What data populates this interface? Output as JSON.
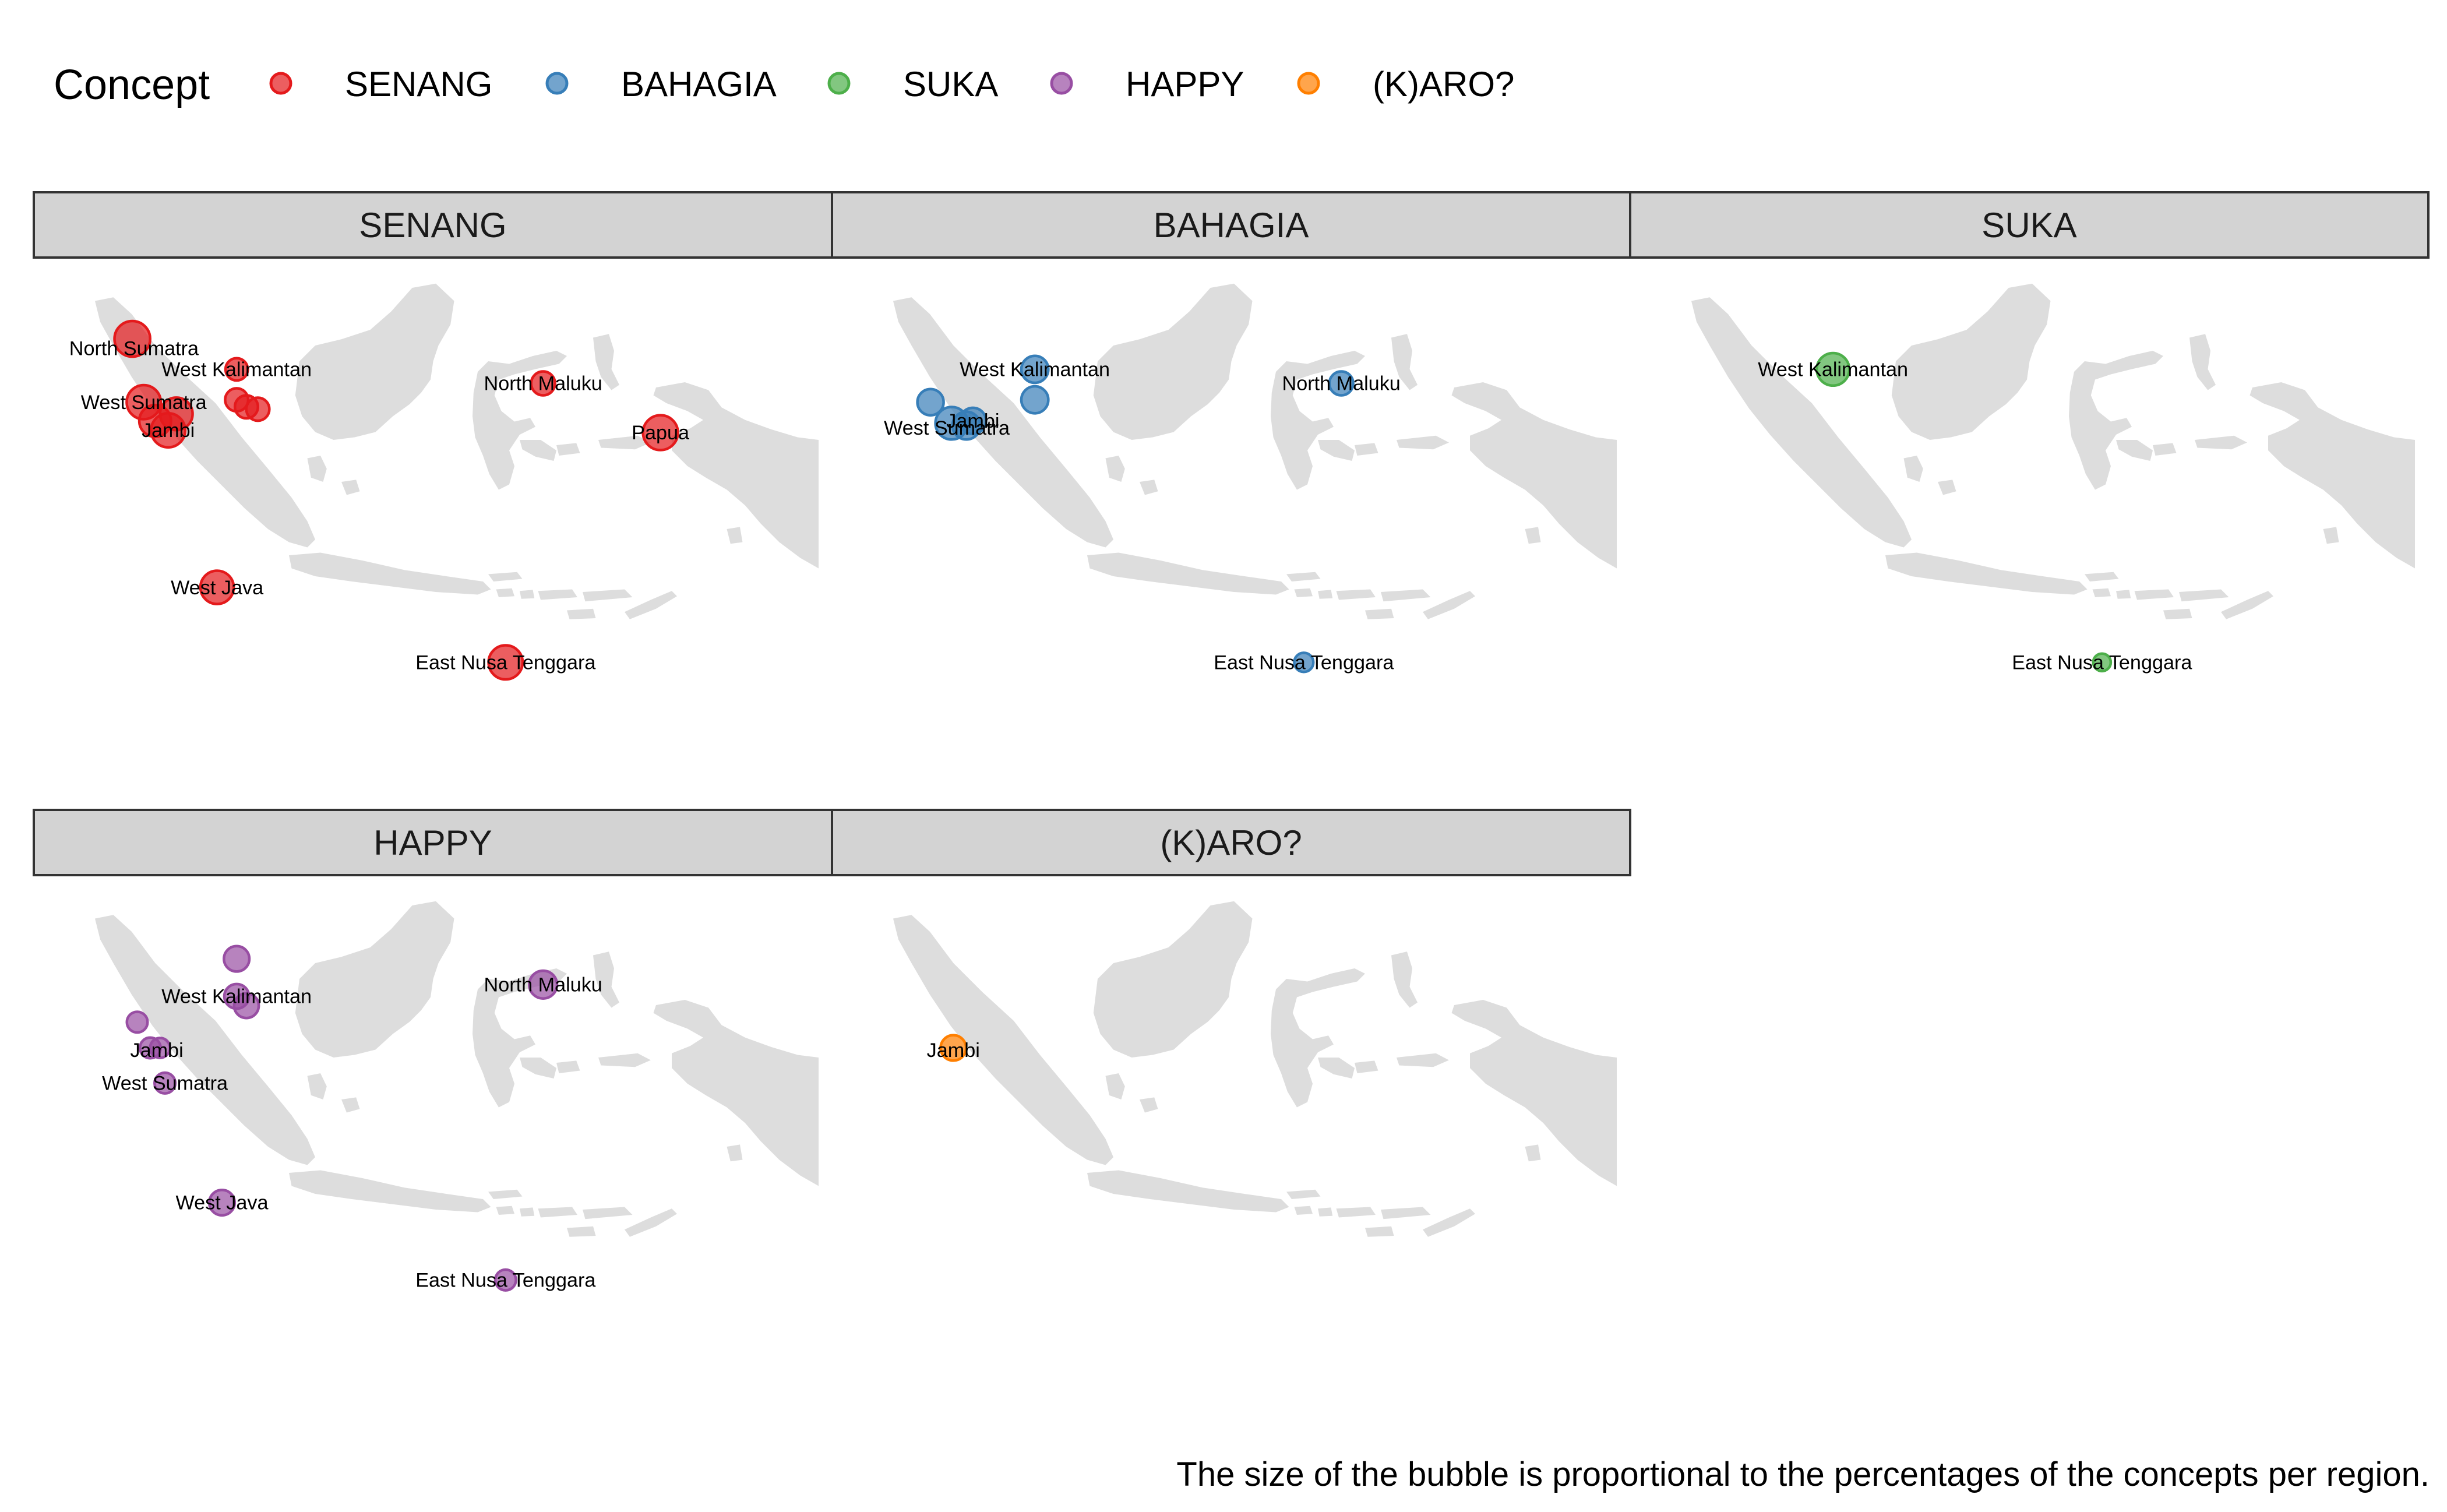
{
  "legend": {
    "title": "Concept",
    "items": [
      {
        "label": "SENANG",
        "color": "#E41A1C"
      },
      {
        "label": "BAHAGIA",
        "color": "#377EB8"
      },
      {
        "label": "SUKA",
        "color": "#4DAF4A"
      },
      {
        "label": "HAPPY",
        "color": "#984EA3"
      },
      {
        "label": "(K)ARO?",
        "color": "#FF7F00"
      }
    ]
  },
  "caption": "The size of the bubble is proportional to the percentages of the concepts per region.",
  "map_fill": "#DDDDDD",
  "strip_fill": "#D3D3D3",
  "chart_data": {
    "type": "bubble-map",
    "facets": [
      {
        "concept": "SENANG",
        "color": "#E41A1C",
        "bubbles": [
          {
            "lon": 98.9,
            "lat": 3.6,
            "size": 3.2
          },
          {
            "lon": 99.6,
            "lat": 0.9,
            "size": 3.0
          },
          {
            "lon": 100.3,
            "lat": 0.1,
            "size": 2.7
          },
          {
            "lon": 101.1,
            "lat": -0.3,
            "size": 3.0
          },
          {
            "lon": 101.6,
            "lat": 0.4,
            "size": 2.8
          },
          {
            "lon": 104.1,
            "lat": -7.0,
            "size": 2.9
          },
          {
            "lon": 105.3,
            "lat": 2.3,
            "size": 1.5
          },
          {
            "lon": 105.3,
            "lat": 1.0,
            "size": 1.6
          },
          {
            "lon": 105.9,
            "lat": 0.7,
            "size": 1.6
          },
          {
            "lon": 106.6,
            "lat": 0.6,
            "size": 1.6
          },
          {
            "lon": 121.8,
            "lat": -10.2,
            "size": 3.0
          },
          {
            "lon": 124.1,
            "lat": 1.7,
            "size": 1.7
          },
          {
            "lon": 131.3,
            "lat": -0.4,
            "size": 3.1
          }
        ],
        "labels": [
          {
            "text": "North Sumatra",
            "lon": 99.0,
            "lat": 3.2
          },
          {
            "text": "West Kalimantan",
            "lon": 105.3,
            "lat": 2.3
          },
          {
            "text": "North Maluku",
            "lon": 124.1,
            "lat": 1.7
          },
          {
            "text": "West Sumatra",
            "lon": 99.6,
            "lat": 0.9
          },
          {
            "text": "Jambi",
            "lon": 101.1,
            "lat": -0.3
          },
          {
            "text": "Papua",
            "lon": 131.3,
            "lat": -0.4
          },
          {
            "text": "West Java",
            "lon": 104.1,
            "lat": -7.0
          },
          {
            "text": "East Nusa Tenggara",
            "lon": 121.8,
            "lat": -10.2
          }
        ]
      },
      {
        "concept": "BAHAGIA",
        "color": "#377EB8",
        "bubbles": [
          {
            "lon": 105.3,
            "lat": 2.3,
            "size": 2.1
          },
          {
            "lon": 105.3,
            "lat": 1.0,
            "size": 2.1
          },
          {
            "lon": 98.9,
            "lat": 0.9,
            "size": 2.0
          },
          {
            "lon": 100.2,
            "lat": 0.0,
            "size": 2.8
          },
          {
            "lon": 101.1,
            "lat": -0.1,
            "size": 2.2
          },
          {
            "lon": 101.5,
            "lat": 0.1,
            "size": 2.0
          },
          {
            "lon": 124.1,
            "lat": 1.7,
            "size": 1.7
          },
          {
            "lon": 121.8,
            "lat": -10.2,
            "size": 1.1
          }
        ],
        "labels": [
          {
            "text": "West Kalimantan",
            "lon": 105.3,
            "lat": 2.3
          },
          {
            "text": "North Maluku",
            "lon": 124.1,
            "lat": 1.7
          },
          {
            "text": "Jambi",
            "lon": 101.5,
            "lat": 0.1
          },
          {
            "text": "West Sumatra",
            "lon": 99.9,
            "lat": -0.2
          },
          {
            "text": "East Nusa Tenggara",
            "lon": 121.8,
            "lat": -10.2
          }
        ]
      },
      {
        "concept": "SUKA",
        "color": "#4DAF4A",
        "bubbles": [
          {
            "lon": 105.3,
            "lat": 2.3,
            "size": 2.8
          },
          {
            "lon": 121.8,
            "lat": -10.2,
            "size": 0.9
          }
        ],
        "labels": [
          {
            "text": "West Kalimantan",
            "lon": 105.3,
            "lat": 2.3
          },
          {
            "text": "East Nusa Tenggara",
            "lon": 121.8,
            "lat": -10.2
          }
        ]
      },
      {
        "concept": "HAPPY",
        "color": "#984EA3",
        "bubbles": [
          {
            "lon": 105.3,
            "lat": 3.5,
            "size": 1.9
          },
          {
            "lon": 105.3,
            "lat": 1.9,
            "size": 1.8
          },
          {
            "lon": 105.9,
            "lat": 1.5,
            "size": 1.8
          },
          {
            "lon": 124.1,
            "lat": 2.4,
            "size": 2.2
          },
          {
            "lon": 99.2,
            "lat": 0.8,
            "size": 1.3
          },
          {
            "lon": 100.0,
            "lat": -0.3,
            "size": 1.3
          },
          {
            "lon": 100.6,
            "lat": -0.3,
            "size": 1.2
          },
          {
            "lon": 100.9,
            "lat": -1.8,
            "size": 1.3
          },
          {
            "lon": 104.4,
            "lat": -6.9,
            "size": 1.9
          },
          {
            "lon": 121.8,
            "lat": -10.2,
            "size": 1.3
          }
        ],
        "labels": [
          {
            "text": "West Kalimantan",
            "lon": 105.3,
            "lat": 1.9
          },
          {
            "text": "North Maluku",
            "lon": 124.1,
            "lat": 2.4
          },
          {
            "text": "Jambi",
            "lon": 100.4,
            "lat": -0.4
          },
          {
            "text": "West Sumatra",
            "lon": 100.9,
            "lat": -1.8
          },
          {
            "text": "West Java",
            "lon": 104.4,
            "lat": -6.9
          },
          {
            "text": "East Nusa Tenggara",
            "lon": 121.8,
            "lat": -10.2
          }
        ]
      },
      {
        "concept": "(K)ARO?",
        "color": "#FF7F00",
        "bubbles": [
          {
            "lon": 100.3,
            "lat": -0.3,
            "size": 1.9
          }
        ],
        "labels": [
          {
            "text": "Jambi",
            "lon": 100.3,
            "lat": -0.4
          }
        ]
      }
    ]
  }
}
